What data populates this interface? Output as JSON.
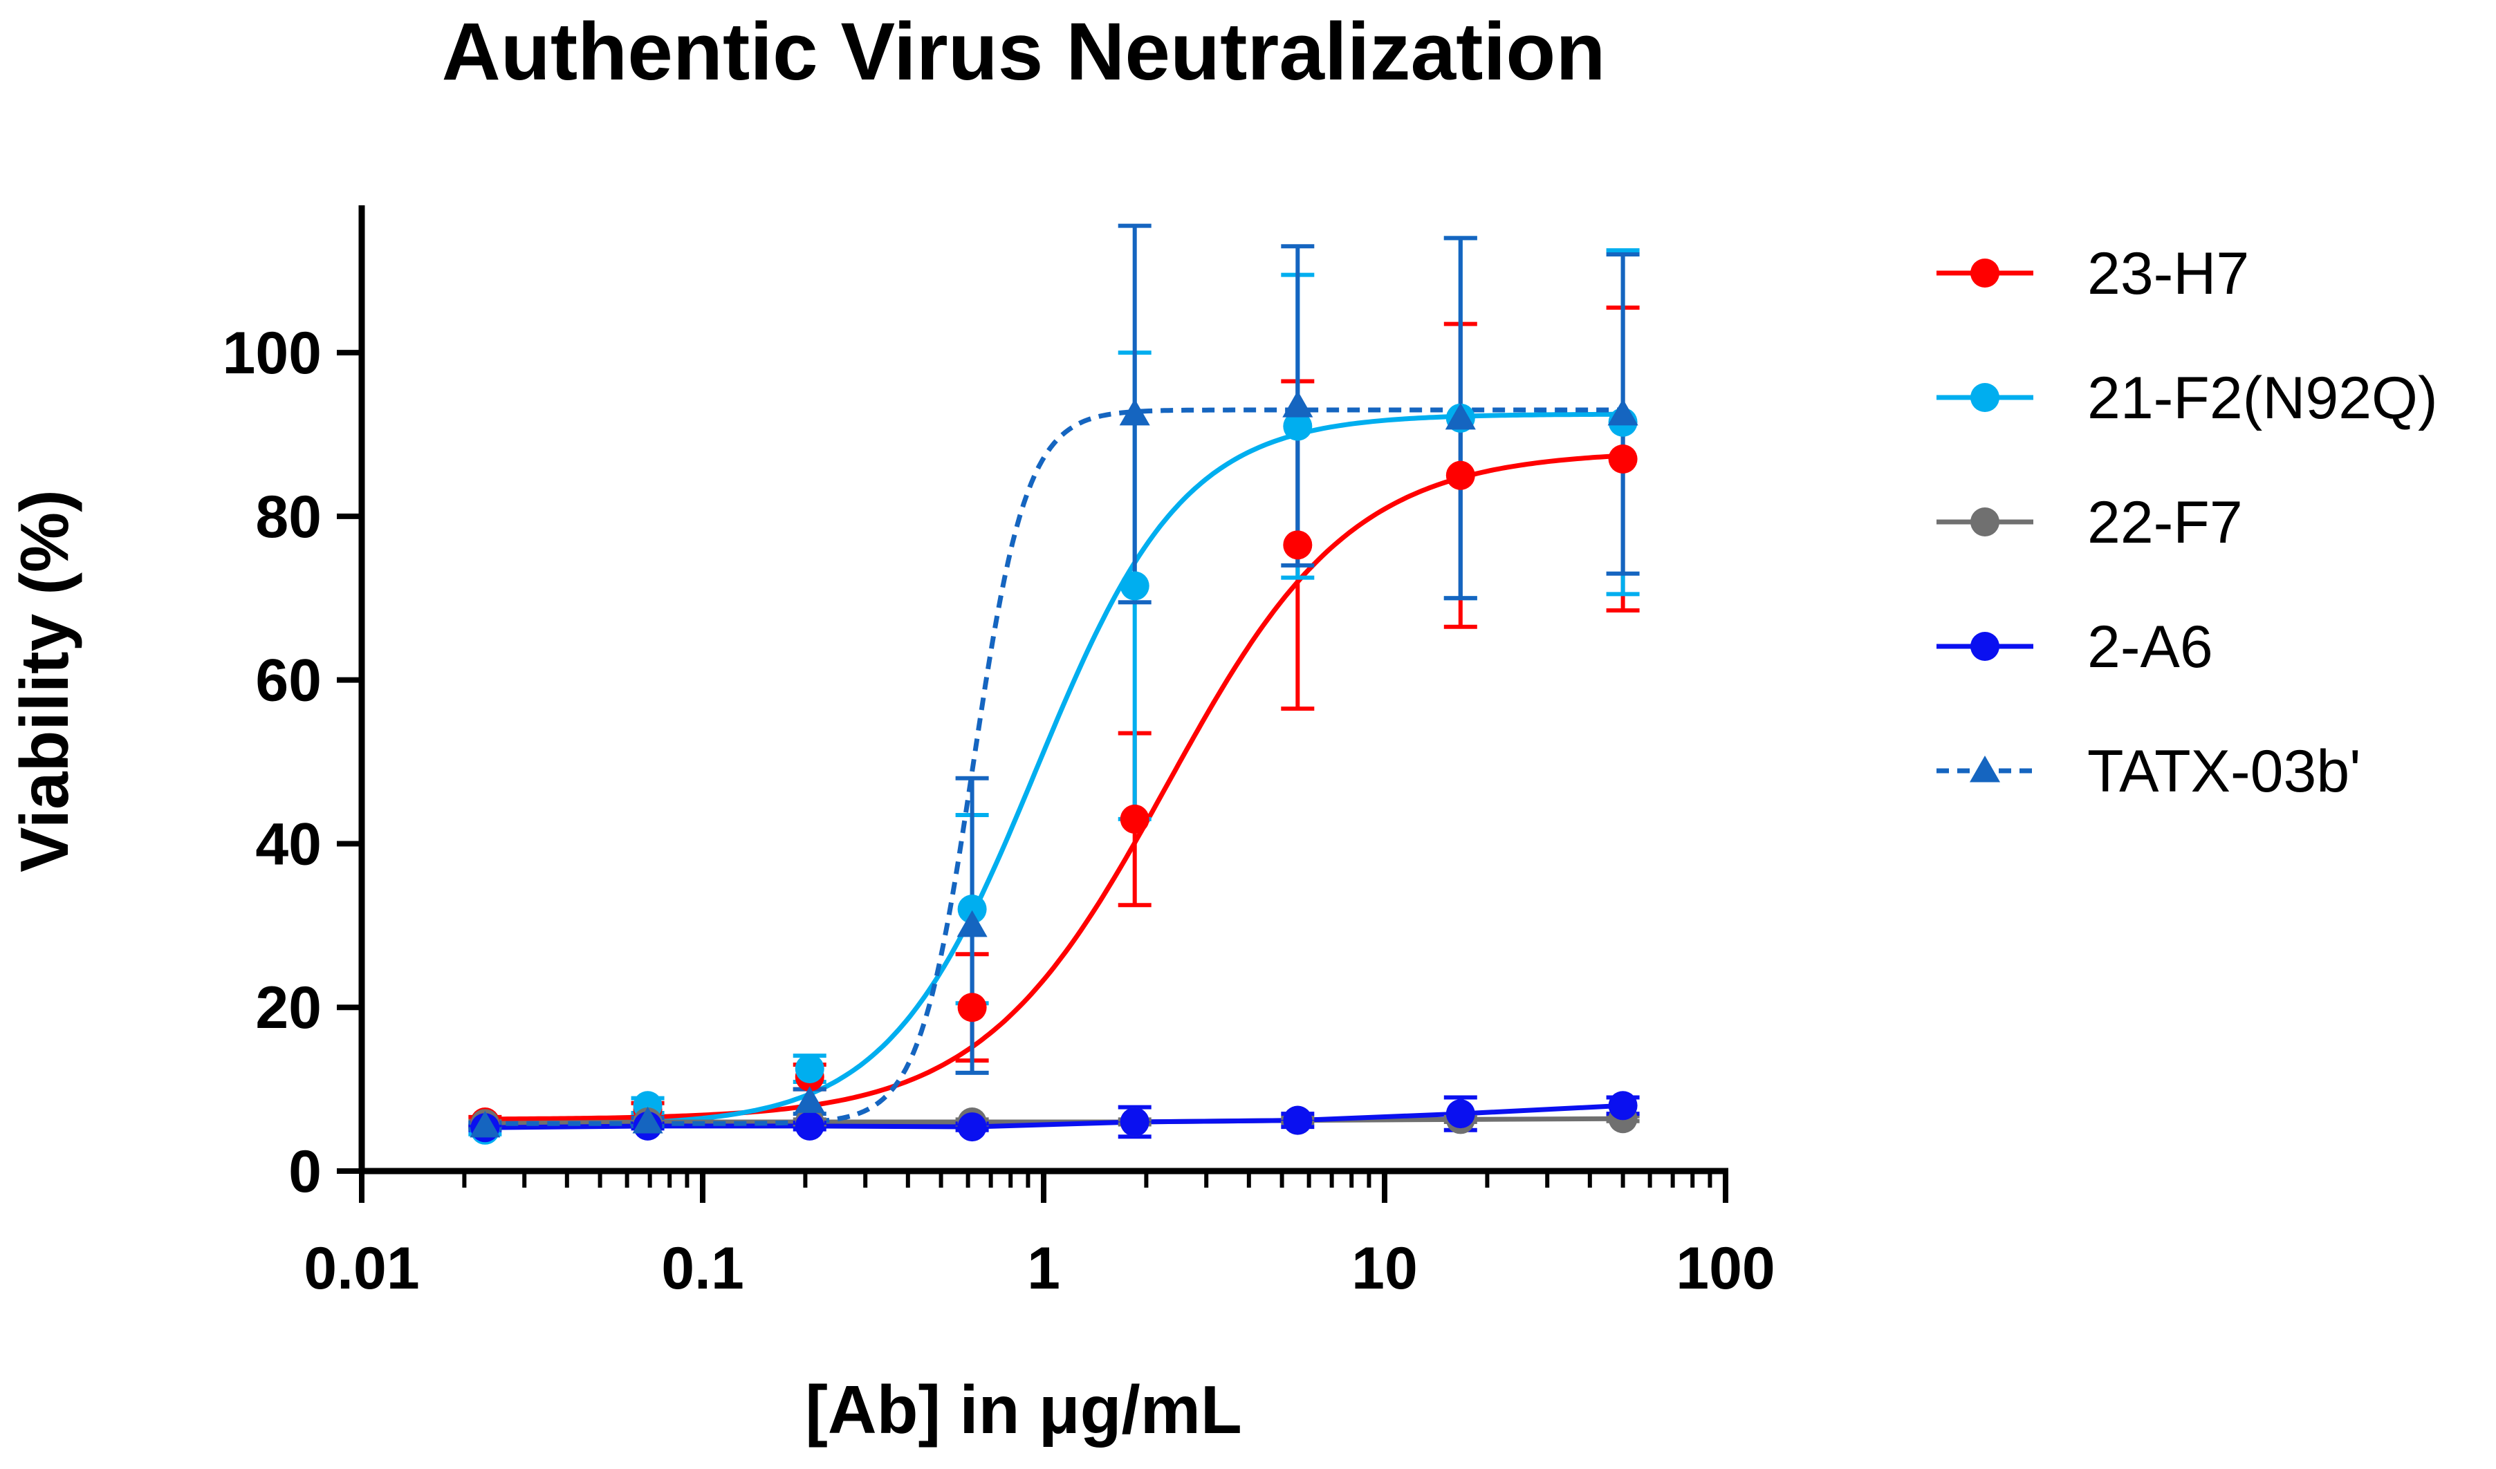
{
  "chart_data": {
    "type": "scatter",
    "title": "Authentic Virus Neutralization",
    "xlabel": "[Ab] in μg/mL",
    "ylabel": "Viability (%)",
    "xscale": "log",
    "xlim": [
      0.01,
      100
    ],
    "ylim": [
      0,
      118
    ],
    "xticks": [
      0.01,
      0.1,
      1,
      10,
      100
    ],
    "xtick_labels": [
      "0.01",
      "0.1",
      "1",
      "10",
      "100"
    ],
    "yticks": [
      0,
      20,
      40,
      60,
      80,
      100
    ],
    "ytick_labels": [
      "0",
      "20",
      "40",
      "60",
      "80",
      "100"
    ],
    "grid": false,
    "legend_position": "right",
    "x": [
      0.023,
      0.069,
      0.206,
      0.617,
      1.85,
      5.56,
      16.7,
      50
    ],
    "series": [
      {
        "name": "23-H7",
        "color": "#ff0000",
        "marker": "circle",
        "line": "solid",
        "y": [
          6,
          7.5,
          11.5,
          20,
          43,
          76.5,
          85,
          87
        ],
        "err": [
          0.6,
          0.8,
          1.5,
          6.5,
          10.5,
          20,
          18.5,
          18.5
        ],
        "fit": {
          "bottom": 6.3,
          "top": 88,
          "ec50": 2.3,
          "hill": 1.6
        }
      },
      {
        "name": "21-F2(N92Q)",
        "color": "#00aeef",
        "marker": "circle",
        "line": "solid",
        "y": [
          5,
          8,
          12.5,
          32,
          71.5,
          91,
          92,
          91.5
        ],
        "err": [
          0.5,
          0.9,
          1.6,
          11.5,
          28.5,
          18.5,
          22,
          21
        ],
        "fit": {
          "bottom": 5.5,
          "top": 92.5,
          "ec50": 0.95,
          "hill": 2.0
        }
      },
      {
        "name": "22-F7",
        "color": "#707070",
        "marker": "circle",
        "line": "solid",
        "y": [
          5.8,
          6,
          6,
          6,
          6,
          6.2,
          6.3,
          6.4
        ],
        "err": [
          0.3,
          0.3,
          0.3,
          0.3,
          0.3,
          0.3,
          0.3,
          0.3
        ],
        "fit": null
      },
      {
        "name": "2-A6",
        "color": "#0a10f0",
        "marker": "circle",
        "line": "solid",
        "y": [
          5.3,
          5.5,
          5.5,
          5.4,
          6,
          6.2,
          7,
          8
        ],
        "err": [
          0.3,
          0.3,
          0.4,
          0.4,
          1.8,
          0.8,
          2.0,
          1.0
        ],
        "fit": null
      },
      {
        "name": "TATX-03b'",
        "color": "#1565c0",
        "marker": "triangle",
        "line": "dashed",
        "y": [
          5.5,
          6,
          8.5,
          30,
          92.5,
          93.5,
          92,
          92.5
        ],
        "err": [
          0.4,
          0.5,
          1.5,
          18,
          23,
          19.5,
          22,
          19.5
        ],
        "fit": {
          "bottom": 5.8,
          "top": 93,
          "ec50": 0.62,
          "hill": 5.5
        }
      }
    ]
  }
}
